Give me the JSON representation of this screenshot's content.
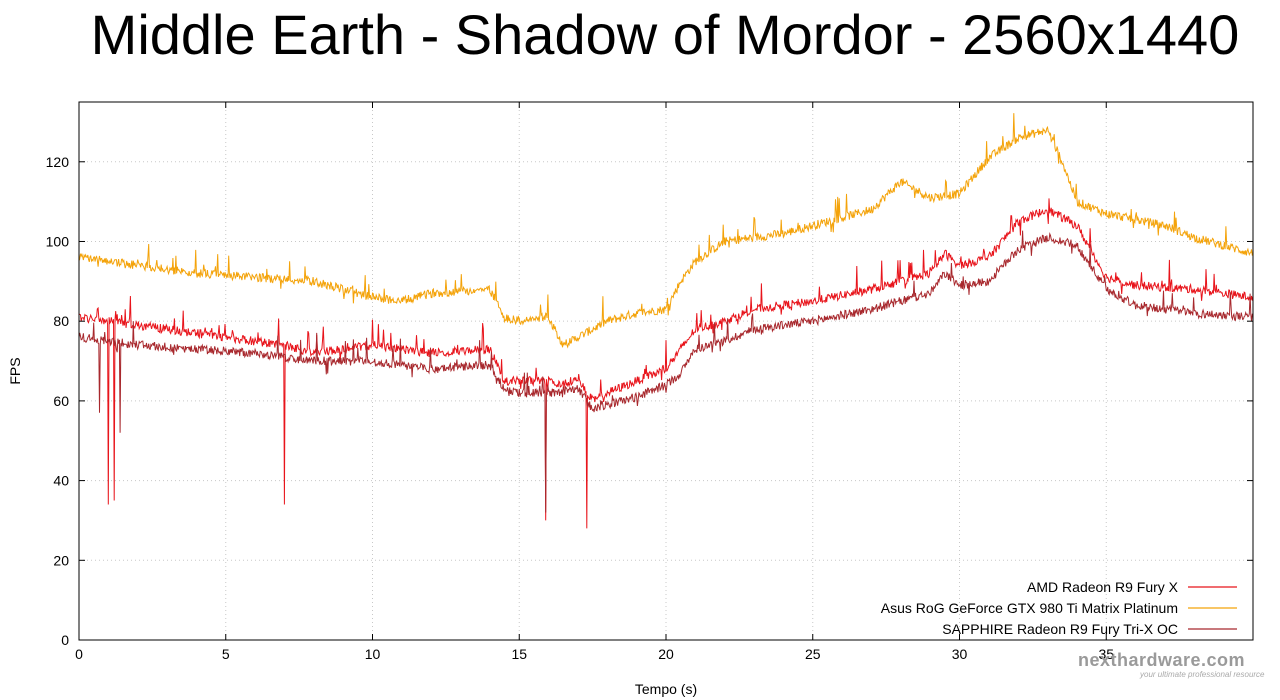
{
  "chart_data": {
    "type": "line",
    "title": "Middle Earth - Shadow of Mordor - 2560x1440",
    "xlabel": "Tempo (s)",
    "ylabel": "FPS",
    "xlim": [
      0,
      40
    ],
    "ylim": [
      0,
      135
    ],
    "xticks": [
      0,
      5,
      10,
      15,
      20,
      25,
      30,
      35
    ],
    "yticks": [
      0,
      20,
      40,
      60,
      80,
      100,
      120
    ],
    "grid": true,
    "legend_position": "bottom-right",
    "series": [
      {
        "name": "AMD Radeon R9 Fury X",
        "color": "#e8141b",
        "x": [
          0,
          2,
          4,
          6,
          7,
          8,
          10,
          12,
          14,
          14.5,
          15,
          16,
          16.5,
          17,
          17.5,
          18,
          19,
          20,
          20.5,
          21,
          22,
          23,
          25,
          27,
          29,
          29.5,
          30,
          31,
          32,
          33,
          34,
          35,
          36,
          38,
          40
        ],
        "values": [
          81,
          79,
          77,
          75,
          74,
          72,
          74,
          72,
          73,
          65,
          65,
          65,
          64,
          66,
          60,
          62,
          65,
          68,
          73,
          78,
          80,
          83,
          85,
          88,
          92,
          97,
          94,
          96,
          105,
          108,
          104,
          91,
          89,
          88,
          86
        ],
        "dips": [
          {
            "x": 1.0,
            "y": 34
          },
          {
            "x": 1.2,
            "y": 35
          },
          {
            "x": 7.0,
            "y": 34
          },
          {
            "x": 15.9,
            "y": 30
          },
          {
            "x": 17.3,
            "y": 28
          }
        ]
      },
      {
        "name": "Asus RoG GeForce GTX 980 Ti Matrix Platinum",
        "color": "#f4a30a",
        "x": [
          0,
          2,
          4,
          6,
          8,
          9,
          10,
          11,
          12,
          14,
          14.5,
          15,
          16,
          16.5,
          17,
          18,
          19,
          20,
          20.5,
          21,
          22,
          24,
          26,
          27,
          28,
          29,
          30,
          31,
          32,
          33,
          33.5,
          34,
          35,
          37,
          38,
          40
        ],
        "values": [
          96,
          94,
          92,
          91,
          90,
          88,
          86,
          85,
          87,
          88,
          81,
          80,
          81,
          74,
          76,
          80,
          82,
          83,
          90,
          95,
          100,
          102,
          106,
          108,
          115,
          111,
          112,
          121,
          126,
          128,
          120,
          110,
          107,
          104,
          101,
          97
        ],
        "dips": []
      },
      {
        "name": "SAPPHIRE Radeon R9 Fury Tri-X OC",
        "color": "#a8282d",
        "x": [
          0,
          2,
          4,
          6,
          7,
          8,
          10,
          12,
          14,
          14.5,
          15,
          16,
          16.5,
          17,
          17.5,
          18,
          19,
          20,
          20.5,
          21,
          22,
          23,
          25,
          27,
          29,
          29.5,
          30,
          31,
          32,
          33,
          34,
          35,
          36,
          38,
          40
        ],
        "values": [
          76,
          74,
          73,
          72,
          71,
          70,
          70,
          68,
          69,
          63,
          62,
          62,
          62,
          63,
          58,
          59,
          61,
          64,
          67,
          73,
          75,
          78,
          80,
          83,
          87,
          92,
          89,
          90,
          98,
          101,
          99,
          88,
          84,
          82,
          81
        ],
        "dips": [
          {
            "x": 0.7,
            "y": 57
          },
          {
            "x": 1.4,
            "y": 52
          },
          {
            "x": 15.9,
            "y": 32
          }
        ]
      }
    ]
  },
  "watermark": {
    "text": "nexthardware.com",
    "subtitle": "your ultimate professional resource"
  }
}
